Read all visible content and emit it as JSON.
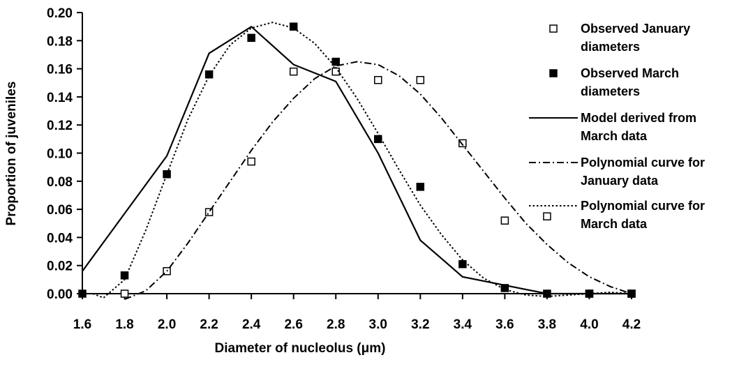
{
  "chart_data": {
    "type": "line",
    "xlabel": "Diameter of nucleolus (μm)",
    "ylabel": "Proportion of juveniles",
    "xlim": [
      1.6,
      4.2
    ],
    "ylim": [
      0,
      0.2
    ],
    "xticks": [
      1.6,
      1.8,
      {
        "value": 2,
        "label": "2.0"
      },
      2.2,
      2.4,
      2.6,
      2.8,
      {
        "value": 3,
        "label": "3.0"
      },
      3.2,
      3.4,
      3.6,
      3.8,
      {
        "value": 4,
        "label": "4.0"
      },
      4.2
    ],
    "yticks": [
      {
        "value": 0,
        "label": "0.00"
      },
      {
        "value": 0.02,
        "label": "0.02"
      },
      {
        "value": 0.04,
        "label": "0.04"
      },
      {
        "value": 0.06,
        "label": "0.06"
      },
      {
        "value": 0.08,
        "label": "0.08"
      },
      {
        "value": 0.1,
        "label": "0.10"
      },
      {
        "value": 0.12,
        "label": "0.12"
      },
      {
        "value": 0.14,
        "label": "0.14"
      },
      {
        "value": 0.16,
        "label": "0.16"
      },
      {
        "value": 0.18,
        "label": "0.18"
      },
      {
        "value": 0.2,
        "label": "0.20"
      }
    ],
    "series": [
      {
        "name": "Observed January diameters",
        "color": "#000000",
        "marker": "open-square",
        "x": [
          1.8,
          2.0,
          2.2,
          2.4,
          2.6,
          2.8,
          3.0,
          3.2,
          3.4,
          3.6,
          3.8,
          4.0,
          4.2
        ],
        "values": [
          0,
          0.016,
          0.058,
          0.094,
          0.158,
          0.158,
          0.152,
          0.152,
          0.107,
          0.052,
          0.055,
          0,
          0
        ]
      },
      {
        "name": "Observed March diameters",
        "color": "#000000",
        "marker": "filled-square",
        "x": [
          1.6,
          1.8,
          2.0,
          2.2,
          2.4,
          2.6,
          2.8,
          3.0,
          3.2,
          3.4,
          3.6,
          3.8,
          4.0,
          4.2
        ],
        "values": [
          0,
          0.013,
          0.085,
          0.156,
          0.182,
          0.19,
          0.165,
          0.11,
          0.076,
          0.021,
          0.004,
          0,
          0,
          0
        ]
      },
      {
        "name": "Model derived from March data",
        "color": "#000000",
        "line_style": "solid",
        "x": [
          1.6,
          1.8,
          2.0,
          2.2,
          2.4,
          2.6,
          2.8,
          3.0,
          3.2,
          3.4,
          3.6,
          3.8,
          4.0,
          4.2
        ],
        "values": [
          0.016,
          0.057,
          0.098,
          0.171,
          0.19,
          0.163,
          0.151,
          0.1,
          0.038,
          0.012,
          0.006,
          0,
          0,
          0
        ]
      },
      {
        "name": "Polynomial curve for January data",
        "color": "#000000",
        "line_style": "dashdot",
        "x": [
          1.8,
          1.9,
          2.0,
          2.1,
          2.2,
          2.3,
          2.4,
          2.5,
          2.6,
          2.7,
          2.8,
          2.9,
          3.0,
          3.1,
          3.2,
          3.3,
          3.4,
          3.5,
          3.6,
          3.7,
          3.8,
          3.9,
          4.0,
          4.1,
          4.2
        ],
        "values": [
          -0.004,
          0.002,
          0.016,
          0.036,
          0.058,
          0.08,
          0.102,
          0.122,
          0.139,
          0.153,
          0.162,
          0.165,
          0.163,
          0.155,
          0.142,
          0.125,
          0.106,
          0.087,
          0.068,
          0.05,
          0.035,
          0.022,
          0.012,
          0.005,
          0
        ]
      },
      {
        "name": "Polynomial curve for March data",
        "color": "#000000",
        "line_style": "dotted",
        "x": [
          1.65,
          1.7,
          1.8,
          1.9,
          2.0,
          2.1,
          2.2,
          2.3,
          2.4,
          2.5,
          2.6,
          2.7,
          2.8,
          2.9,
          3.0,
          3.1,
          3.2,
          3.3,
          3.4,
          3.5,
          3.6,
          3.7,
          3.8,
          3.9,
          4.0,
          4.1,
          4.2
        ],
        "values": [
          0,
          -0.003,
          0.01,
          0.045,
          0.085,
          0.124,
          0.155,
          0.177,
          0.189,
          0.193,
          0.189,
          0.178,
          0.161,
          0.139,
          0.114,
          0.088,
          0.063,
          0.042,
          0.024,
          0.011,
          0.003,
          -0.001,
          -0.002,
          -0.001,
          0,
          0.001,
          0
        ]
      }
    ]
  }
}
